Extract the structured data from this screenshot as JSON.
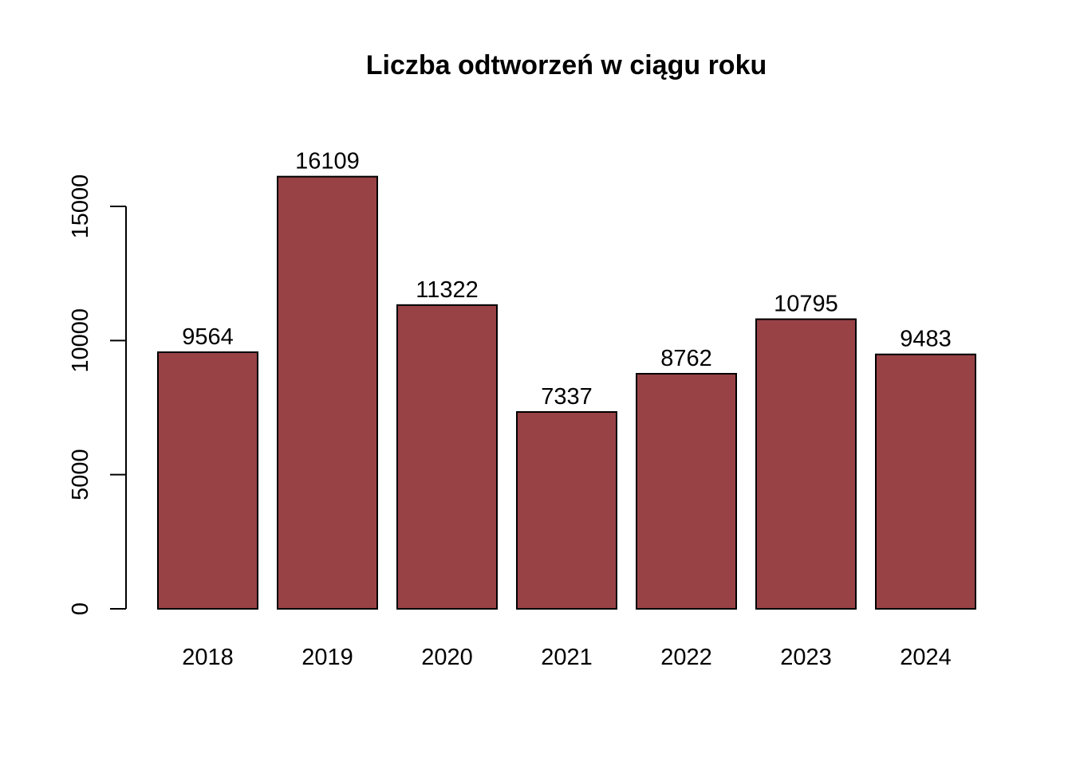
{
  "chart_data": {
    "type": "bar",
    "title": "Liczba odtworzeń w ciągu roku",
    "xlabel": "",
    "ylabel": "",
    "categories": [
      "2018",
      "2019",
      "2020",
      "2021",
      "2022",
      "2023",
      "2024"
    ],
    "values": [
      9564,
      16109,
      11322,
      7337,
      8762,
      10795,
      9483
    ],
    "data_labels": [
      "9564",
      "16109",
      "11322",
      "7337",
      "8762",
      "10795",
      "9483"
    ],
    "ylim": [
      0,
      16109
    ],
    "yticks": [
      0,
      5000,
      10000,
      15000
    ],
    "ytick_labels": [
      "0",
      "5000",
      "10000",
      "15000"
    ],
    "grid": false,
    "legend": "none",
    "bar_color": "#984246",
    "border_color": "#000000"
  }
}
